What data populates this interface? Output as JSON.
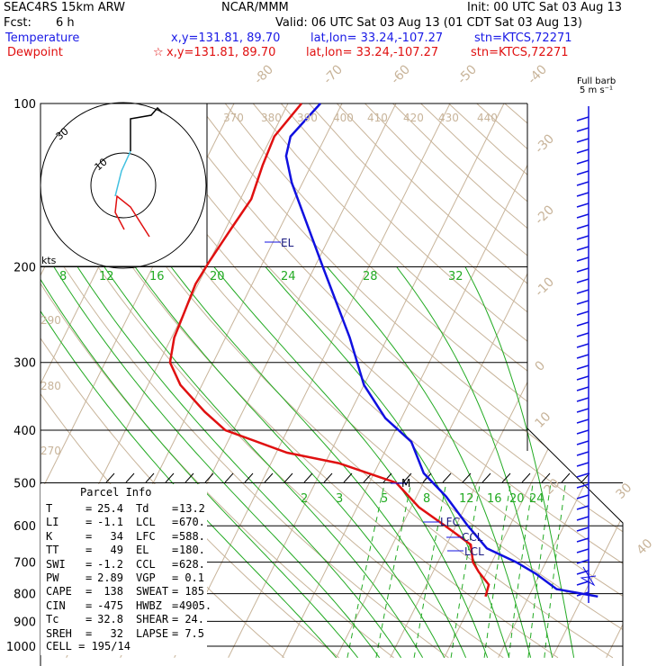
{
  "header": {
    "model": "SEAC4RS 15km ARW",
    "fcst_label": "Fcst:",
    "fcst_value": "6 h",
    "org": "NCAR/MMM",
    "init": "Init: 00 UTC Sat 03 Aug 13",
    "valid": "Valid: 06 UTC Sat 03 Aug 13 (01 CDT Sat 03 Aug 13)",
    "temp_label": "Temperature",
    "temp_xy": "x,y=131.81, 89.70",
    "temp_latlon": "lat,lon= 33.24,-107.27",
    "temp_stn": "stn=KTCS,72271",
    "dew_label": "Dewpoint",
    "dew_star": "☆",
    "dew_xy": "x,y=131.81, 89.70",
    "dew_latlon": "lat,lon= 33.24,-107.27",
    "dew_stn": "stn=KTCS,72271"
  },
  "barb_label_1": "Full barb",
  "barb_label_2": "5 m s⁻¹",
  "hodograph": {
    "units": "kts",
    "ring_outer": "30",
    "ring_inner": "10"
  },
  "parcel_info": {
    "title": "Parcel Info",
    "rows": [
      [
        "T",
        "=",
        "25.4",
        "Td",
        "=",
        "13.2"
      ],
      [
        "LI",
        "=",
        "-1.1",
        "LCL",
        "=",
        "670."
      ],
      [
        "K",
        "=",
        "34",
        "LFC",
        "=",
        "588."
      ],
      [
        "TT",
        "=",
        "49",
        "EL",
        "=",
        "180."
      ],
      [
        "SWI",
        "=",
        "-1.2",
        "CCL",
        "=",
        "628."
      ],
      [
        "PW",
        "=",
        "2.89",
        "VGP",
        "=",
        "0.1"
      ],
      [
        "CAPE",
        "=",
        "138",
        "SWEAT",
        "=",
        "185"
      ],
      [
        "CIN",
        "=",
        "-475",
        "HWBZ",
        "=",
        "4905."
      ],
      [
        "Tc",
        "=",
        "32.8",
        "SHEAR",
        "=",
        "24."
      ],
      [
        "SREH",
        "=",
        "32",
        "LAPSE",
        "=",
        "7.5"
      ]
    ],
    "cell": "CELL = 195/14"
  },
  "levels_text": {
    "EL": "EL",
    "LFC": "LFC",
    "CCL": "CCL",
    "LCL": "LCL",
    "M": "M"
  },
  "chart_data": {
    "type": "line",
    "pressure_levels": [
      100,
      200,
      300,
      400,
      500,
      600,
      700,
      800,
      900,
      1000
    ],
    "pressure_labels": [
      "100",
      "200",
      "300",
      "400",
      "500",
      "600",
      "700",
      "800",
      "900",
      "1000"
    ],
    "isotherm_labels": [
      "-80",
      "-70",
      "-60",
      "-50",
      "-40",
      "-30",
      "-20",
      "-10",
      "0",
      "10",
      "20",
      "30",
      "40"
    ],
    "theta_labels": [
      "370",
      "380",
      "390",
      "400",
      "410",
      "420",
      "430",
      "440",
      "290",
      "280",
      "270"
    ],
    "theta_e_labels": [
      "8",
      "12",
      "16",
      "20",
      "24",
      "28",
      "32"
    ],
    "mixing_ratio_labels": [
      "2",
      "3",
      "5",
      "8",
      "12",
      "16",
      "20",
      "24"
    ],
    "colors": {
      "temperature": "#1010e0",
      "dewpoint": "#e01010",
      "isotherm": "#c8b49a",
      "moist": "#22aa22",
      "grid": "#000000"
    },
    "series": [
      {
        "name": "Temperature",
        "x": [
          32.8,
          24.5,
          19.2,
          14.5,
          7.8,
          2.2,
          -4.5,
          -10.8,
          -16.0,
          -23.0,
          -30.0,
          -37.0,
          -48.5,
          -62.0,
          -65.5,
          -66.5,
          -64.0
        ],
        "p": [
          810,
          785,
          735,
          700,
          660,
          600,
          530,
          480,
          420,
          380,
          330,
          270,
          200,
          140,
          125,
          115,
          100
        ]
      },
      {
        "name": "Dewpoint",
        "x": [
          12.0,
          11.5,
          8.5,
          6.5,
          4.5,
          -2.0,
          -8.5,
          -15.0,
          -27.5,
          -38.0,
          -51.5,
          -57.0,
          -64.0,
          -68.0,
          -69.5,
          -70.0,
          -70.5,
          -70.0,
          -69.0,
          -68.0,
          -69.0,
          -69.5,
          -67.5
        ],
        "p": [
          810,
          770,
          730,
          700,
          650,
          600,
          555,
          500,
          460,
          440,
          400,
          370,
          330,
          300,
          270,
          240,
          215,
          195,
          170,
          150,
          130,
          115,
          100
        ]
      }
    ]
  }
}
